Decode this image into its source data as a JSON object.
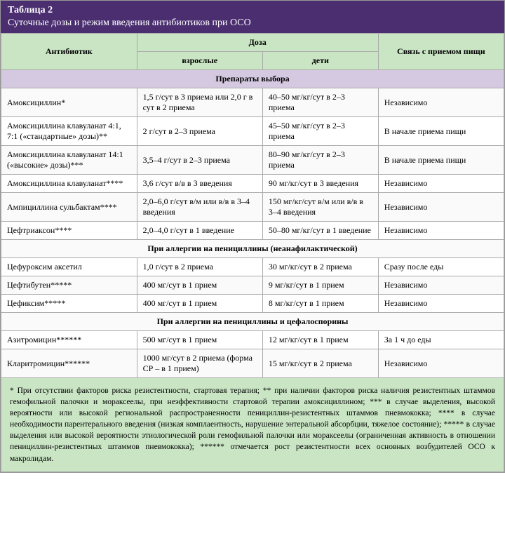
{
  "title": {
    "line1": "Таблица 2",
    "line2": "Суточные дозы и режим введения антибиотиков при ОСО"
  },
  "headers": {
    "antibiotic": "Антибиотик",
    "dose": "Доза",
    "adults": "взрослые",
    "children": "дети",
    "food": "Связь с приемом пищи"
  },
  "sections": [
    {
      "title": "Препараты выбора",
      "rows": [
        {
          "drug": "Амоксициллин*",
          "adult": "1,5 г/сут в 3 приема или 2,0 г в сут в 2 приема",
          "child": "40–50 мг/кг/сут в 2–3 приема",
          "food": "Независимо"
        },
        {
          "drug": "Амоксициллина клавуланат 4:1, 7:1 («стандартные» дозы)**",
          "adult": "2 г/сут в 2–3 приема",
          "child": "45–50 мг/кг/сут в 2–3 приема",
          "food": "В начале приема пищи"
        },
        {
          "drug": "Амоксициллина клавуланат 14:1 («высокие» дозы)***",
          "adult": "3,5–4 г/сут в 2–3 приема",
          "child": "80–90 мг/кг/сут в 2–3 приема",
          "food": "В начале приема пищи"
        },
        {
          "drug": "Амоксициллина клавуланат****",
          "adult": "3,6 г/сут в/в в 3 введения",
          "child": "90 мг/кг/сут в 3 введения",
          "food": "Независимо"
        },
        {
          "drug": "Ампициллина сульбактам****",
          "adult": "2,0–6,0 г/сут в/м или в/в в 3–4 введения",
          "child": "150 мг/кг/сут в/м или в/в в 3–4 введения",
          "food": "Независимо"
        },
        {
          "drug": "Цефтриаксон****",
          "adult": "2,0–4,0 г/сут в 1 введение",
          "child": "50–80 мг/кг/сут в 1 введение",
          "food": "Независимо"
        }
      ]
    },
    {
      "title": "При аллергии на пенициллины (неанафилактической)",
      "rows": [
        {
          "drug": "Цефуроксим аксетил",
          "adult": "1,0 г/сут в 2 приема",
          "child": "30 мг/кг/сут в 2 приема",
          "food": "Сразу после еды"
        },
        {
          "drug": "Цефтибутен*****",
          "adult": "400 мг/сут в 1 прием",
          "child": "9 мг/кг/сут в 1 прием",
          "food": "Независимо"
        },
        {
          "drug": "Цефиксим*****",
          "adult": "400 мг/сут в 1 прием",
          "child": "8 мг/кг/сут в 1 прием",
          "food": "Независимо"
        }
      ]
    },
    {
      "title": "При аллергии на пенициллины и цефалоспорины",
      "rows": [
        {
          "drug": "Азитромицин******",
          "adult": "500 мг/сут в 1 прием",
          "child": "12 мг/кг/сут в 1 прием",
          "food": "За 1 ч до еды"
        },
        {
          "drug": "Кларитромицин******",
          "adult": "1000 мг/сут в 2 приема (форма СР – в 1 прием)",
          "child": "15 мг/кг/сут в 2 приема",
          "food": "Независимо"
        }
      ]
    }
  ],
  "footnote": "* При отсутствии факторов риска резистентности, стартовая терапия; ** при наличии факторов риска наличия резистентных штаммов гемофильной палочки и мораксеелы, при неэффективности стартовой терапии амоксициллином; *** в случае выделения, высокой вероятности или высокой региональной распространенности пенициллин-резистентных штаммов пневмококка; **** в случае необходимости парентерального введения (низкая комплаентность, нарушение энтеральной абсорбции, тяжелое состояние); ***** в случае выделения или высокой вероятности этиологической роли гемофильной палочки или мораксеелы (ограниченная активность в отношении пенициллин-резистентных штаммов пневмококка); ****** отмечается рост резистентности всех основных возбудителей ОСО к макролидам."
}
